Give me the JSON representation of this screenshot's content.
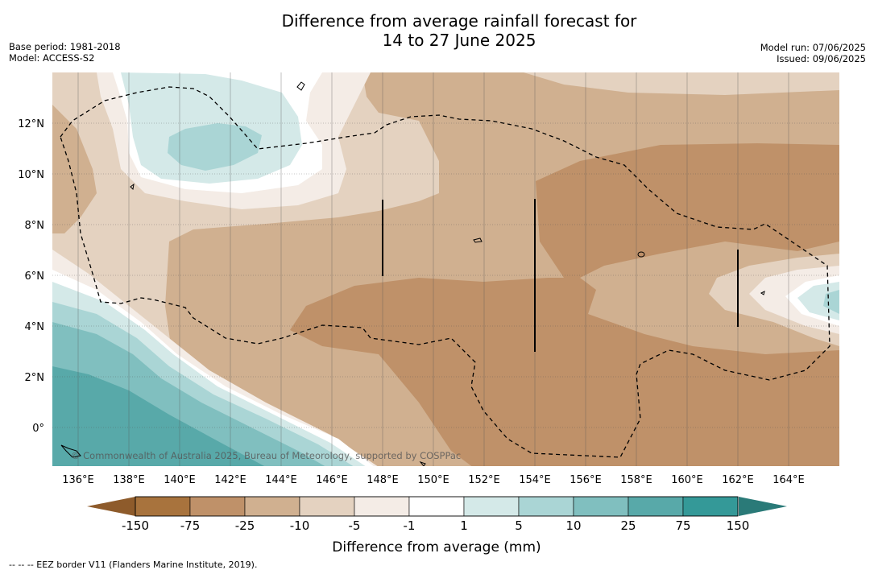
{
  "title": {
    "line1": "Difference from average rainfall forecast for",
    "line2": "14 to 27 June 2025"
  },
  "meta_left": {
    "base_period": "Base period: 1981-2018",
    "model": "Model: ACCESS-S2"
  },
  "meta_right": {
    "model_run": "Model run: 07/06/2025",
    "issued": "Issued: 09/06/2025"
  },
  "map": {
    "copyright": "© Commonwealth of Australia 2025, Bureau of Meteorology, supported by COSPPac",
    "lon_labels": [
      "136°E",
      "138°E",
      "140°E",
      "142°E",
      "144°E",
      "146°E",
      "148°E",
      "150°E",
      "152°E",
      "154°E",
      "156°E",
      "158°E",
      "160°E",
      "162°E",
      "164°E"
    ],
    "lat_labels": [
      "12°N",
      "10°N",
      "8°N",
      "6°N",
      "4°N",
      "2°N",
      "0°"
    ]
  },
  "colorbar": {
    "title": "Difference from average (mm)",
    "tick_labels": [
      "-150",
      "-75",
      "-25",
      "-10",
      "-5",
      "-1",
      "1",
      "5",
      "10",
      "25",
      "75",
      "150"
    ],
    "colors": {
      "dry_extreme": "#8e5b2b",
      "bins": [
        "#a8733d",
        "#bf9169",
        "#d0b090",
        "#e4d2c0",
        "#f4ece6",
        "#ffffff",
        "#d4e9e8",
        "#aad5d5",
        "#80bfbf",
        "#58a9a9",
        "#349998"
      ],
      "wet_extreme": "#2a7a78"
    }
  },
  "footnote": "--  --  -- EEZ border V11 (Flanders Marine Institute, 2019)."
}
